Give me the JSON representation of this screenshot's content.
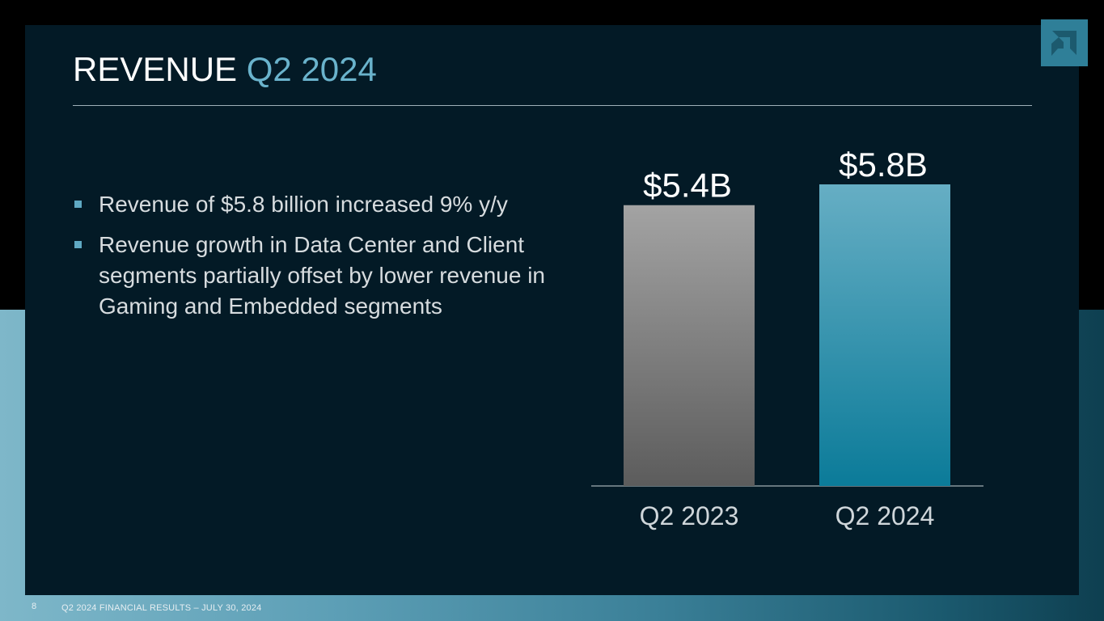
{
  "slide": {
    "title_main": "REVENUE",
    "title_accent": "Q2 2024",
    "bullets": [
      "Revenue of $5.8 billion increased 9% y/y",
      "Revenue growth in Data Center and Client segments partially offset by lower revenue in Gaming and Embedded segments"
    ],
    "logo_icon": "amd-arrow-logo-icon"
  },
  "chart_data": {
    "type": "bar",
    "categories": [
      "Q2 2023",
      "Q2 2024"
    ],
    "values": [
      5.4,
      5.8
    ],
    "value_unit": "$B",
    "data_labels": [
      "$5.4B",
      "$5.8B"
    ],
    "ylim": [
      0,
      6.5
    ],
    "grid": false,
    "bar_colors": [
      [
        "#a3a3a3",
        "#5c5c5c"
      ],
      [
        "#66aec4",
        "#0b7b99"
      ]
    ]
  },
  "footer": {
    "page_number": "8",
    "text": "Q2 2024 FINANCIAL RESULTS – JULY 30, 2024"
  },
  "colors": {
    "panel": "#031a26",
    "accent": "#6ab3cc",
    "bullet_marker": "#5fa9c3"
  }
}
